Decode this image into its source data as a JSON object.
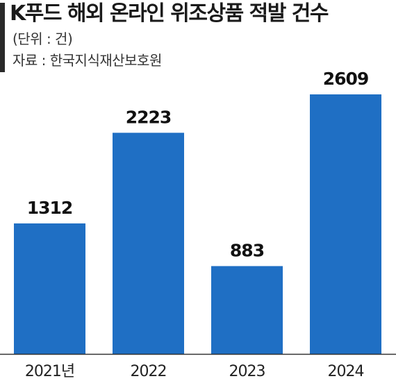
{
  "header": {
    "title": "K푸드 해외 온라인 위조상품 적발 건수",
    "unit": "(단위 : 건)",
    "source": "자료 : 한국지식재산보호원"
  },
  "colors": {
    "bar": "#1f6fc4",
    "accent": "#2a2a2a",
    "axis": "#333333"
  },
  "chart_data": {
    "type": "bar",
    "categories": [
      "2021년",
      "2022",
      "2023",
      "2024"
    ],
    "values": [
      1312,
      2223,
      883,
      2609
    ],
    "title": "K푸드 해외 온라인 위조상품 적발 건수",
    "xlabel": "",
    "ylabel": "",
    "ylim": [
      0,
      2609
    ],
    "grid": false,
    "legend": "none"
  }
}
